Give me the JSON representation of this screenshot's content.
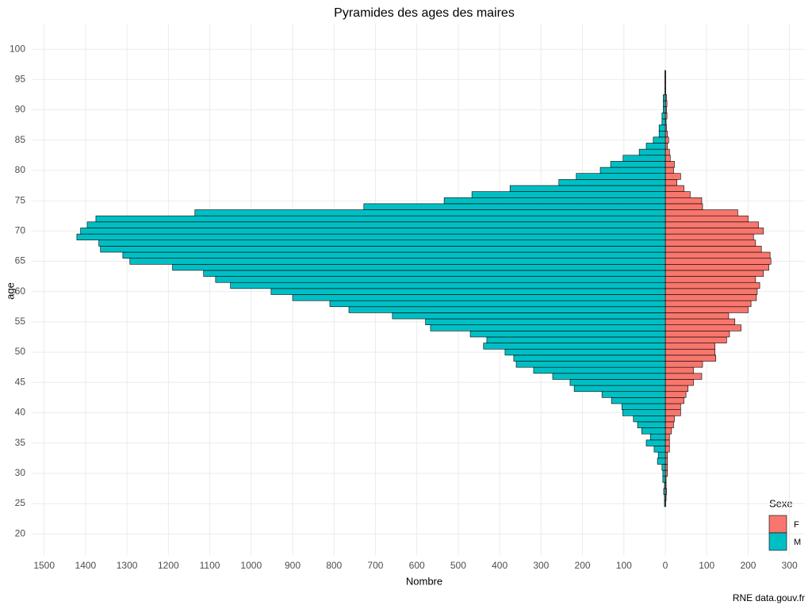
{
  "chart_data": {
    "type": "bar",
    "orientation": "horizontal",
    "title": "Pyramides des ages des maires",
    "x_label": "Nombre",
    "y_label": "age",
    "legend_title": "Sexe",
    "caption": "RNE data.gouv.fr",
    "legend_position": "bottom-right",
    "grid": true,
    "y": [
      25,
      26,
      27,
      28,
      29,
      30,
      31,
      32,
      33,
      34,
      35,
      36,
      37,
      38,
      39,
      40,
      41,
      42,
      43,
      44,
      45,
      46,
      47,
      48,
      49,
      50,
      51,
      52,
      53,
      54,
      55,
      56,
      57,
      58,
      59,
      60,
      61,
      62,
      63,
      64,
      65,
      66,
      67,
      68,
      69,
      70,
      71,
      72,
      73,
      74,
      75,
      76,
      77,
      78,
      79,
      80,
      81,
      82,
      83,
      84,
      85,
      86,
      87,
      88,
      89,
      90,
      91,
      92,
      93,
      94,
      95,
      96
    ],
    "series": [
      {
        "name": "F",
        "color": "#F8766D",
        "values": [
          1,
          2,
          3,
          2,
          2,
          5,
          5,
          5,
          5,
          10,
          10,
          10,
          15,
          20,
          22,
          37,
          37,
          45,
          50,
          55,
          68,
          88,
          68,
          90,
          122,
          120,
          120,
          148,
          155,
          183,
          168,
          153,
          200,
          207,
          220,
          222,
          228,
          218,
          237,
          250,
          255,
          253,
          232,
          218,
          213,
          237,
          225,
          200,
          175,
          90,
          88,
          60,
          45,
          28,
          37,
          20,
          22,
          12,
          10,
          5,
          8,
          5,
          3,
          2,
          4,
          3,
          4,
          3,
          1,
          1,
          1,
          1
        ]
      },
      {
        "name": "M",
        "color": "#00BFC4",
        "values": [
          -2,
          -2,
          -4,
          -2,
          -6,
          -6,
          -8,
          -19,
          -17,
          -27,
          -46,
          -36,
          -57,
          -67,
          -77,
          -103,
          -105,
          -130,
          -153,
          -220,
          -230,
          -272,
          -318,
          -360,
          -366,
          -387,
          -439,
          -431,
          -471,
          -567,
          -579,
          -659,
          -764,
          -810,
          -900,
          -952,
          -1050,
          -1086,
          -1115,
          -1190,
          -1293,
          -1310,
          -1364,
          -1368,
          -1421,
          -1412,
          -1396,
          -1375,
          -1136,
          -728,
          -534,
          -467,
          -375,
          -257,
          -215,
          -157,
          -132,
          -102,
          -63,
          -46,
          -29,
          -15,
          -15,
          -8,
          -8,
          -5,
          -5,
          -5,
          -1,
          -1,
          -1,
          -1
        ]
      }
    ],
    "xlim": [
      -1530,
      337
    ],
    "xticks": [
      {
        "value": -1500,
        "label": "1500"
      },
      {
        "value": -1400,
        "label": "1400"
      },
      {
        "value": -1300,
        "label": "1300"
      },
      {
        "value": -1200,
        "label": "1200"
      },
      {
        "value": -1100,
        "label": "1100"
      },
      {
        "value": -1000,
        "label": "1000"
      },
      {
        "value": -900,
        "label": "900"
      },
      {
        "value": -800,
        "label": "800"
      },
      {
        "value": -700,
        "label": "700"
      },
      {
        "value": -600,
        "label": "600"
      },
      {
        "value": -500,
        "label": "500"
      },
      {
        "value": -400,
        "label": "400"
      },
      {
        "value": -300,
        "label": "300"
      },
      {
        "value": -200,
        "label": "200"
      },
      {
        "value": -100,
        "label": "100"
      },
      0,
      100,
      200,
      300
    ],
    "ylim": [
      16.5,
      104.2
    ],
    "yticks": [
      20,
      25,
      30,
      35,
      40,
      45,
      50,
      55,
      60,
      65,
      70,
      75,
      80,
      85,
      90,
      95,
      100
    ]
  }
}
